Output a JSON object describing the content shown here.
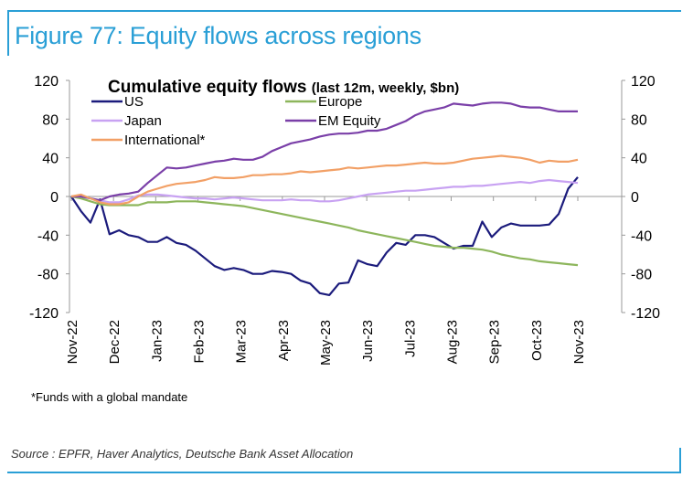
{
  "figure_title": "Figure 77: Equity flows across regions",
  "footnote": "*Funds with a global mandate",
  "source": "Source : EPFR, Haver Analytics, Deutsche Bank Asset Allocation",
  "chart_data": {
    "type": "line",
    "title": "Cumulative equity flows",
    "subtitle": "(last 12m, weekly, $bn)",
    "ylim": [
      -120,
      120
    ],
    "yticks": [
      "120",
      "80",
      "40",
      "0",
      "-40",
      "-80",
      "-120"
    ],
    "y2ticks": [
      "120",
      "80",
      "40",
      "0",
      "-40",
      "-80",
      "-120"
    ],
    "x_tick_labels": [
      "Nov-22",
      "Dec-22",
      "Jan-23",
      "Feb-23",
      "Mar-23",
      "Apr-23",
      "May-23",
      "Jun-23",
      "Jul-23",
      "Aug-23",
      "Sep-23",
      "Oct-23",
      "Nov-23"
    ],
    "legend_placement": "top-left",
    "series": [
      {
        "name": "US",
        "color": "#1b1b7c",
        "values": [
          0,
          -15,
          -27,
          -3,
          -39,
          -35,
          -40,
          -42,
          -47,
          -47,
          -42,
          -48,
          -50,
          -56,
          -64,
          -72,
          -76,
          -74,
          -76,
          -80,
          -80,
          -77,
          -78,
          -80,
          -87,
          -90,
          -100,
          -102,
          -90,
          -89,
          -66,
          -70,
          -72,
          -58,
          -48,
          -50,
          -40,
          -40,
          -42,
          -48,
          -54,
          -51,
          -51,
          -26,
          -42,
          -32,
          -28,
          -30,
          -30,
          -30,
          -29,
          -18,
          8,
          20
        ]
      },
      {
        "name": "Europe",
        "color": "#8db65c",
        "values": [
          0,
          -2,
          -5,
          -8,
          -9,
          -9,
          -9,
          -9,
          -6,
          -6,
          -6,
          -5,
          -5,
          -5,
          -6,
          -7,
          -8,
          -9,
          -10,
          -12,
          -14,
          -16,
          -18,
          -20,
          -22,
          -24,
          -26,
          -28,
          -30,
          -32,
          -35,
          -37,
          -39,
          -41,
          -43,
          -45,
          -47,
          -49,
          -51,
          -52,
          -53,
          -53,
          -54,
          -55,
          -57,
          -60,
          -62,
          -64,
          -65,
          -67,
          -68,
          -69,
          -70,
          -71
        ]
      },
      {
        "name": "Japan",
        "color": "#c8a2f2",
        "values": [
          0,
          0,
          -2,
          -4,
          -6,
          -6,
          -3,
          1,
          2,
          2,
          1,
          0,
          -1,
          -2,
          -2,
          -3,
          -2,
          -1,
          -2,
          -3,
          -4,
          -4,
          -4,
          -3,
          -4,
          -4,
          -5,
          -5,
          -4,
          -2,
          0,
          2,
          3,
          4,
          5,
          6,
          6,
          7,
          8,
          9,
          10,
          10,
          11,
          11,
          12,
          13,
          14,
          15,
          14,
          16,
          17,
          16,
          15,
          14
        ]
      },
      {
        "name": "EM Equity",
        "color": "#7a3fa8",
        "values": [
          0,
          0,
          -2,
          -4,
          0,
          2,
          3,
          5,
          14,
          22,
          30,
          29,
          30,
          32,
          34,
          36,
          37,
          39,
          38,
          38,
          41,
          47,
          51,
          55,
          57,
          59,
          62,
          64,
          65,
          65,
          66,
          68,
          68,
          70,
          74,
          78,
          84,
          88,
          90,
          92,
          96,
          95,
          94,
          96,
          97,
          97,
          96,
          93,
          92,
          92,
          90,
          88,
          88,
          88
        ]
      },
      {
        "name": "International*",
        "color": "#f2a066",
        "values": [
          0,
          2,
          -2,
          -6,
          -8,
          -8,
          -6,
          0,
          5,
          8,
          11,
          13,
          14,
          15,
          17,
          20,
          19,
          19,
          20,
          22,
          22,
          23,
          23,
          24,
          26,
          25,
          26,
          27,
          28,
          30,
          29,
          30,
          31,
          32,
          32,
          33,
          34,
          35,
          34,
          34,
          35,
          37,
          39,
          40,
          41,
          42,
          41,
          40,
          38,
          35,
          37,
          36,
          36,
          38
        ]
      }
    ]
  }
}
